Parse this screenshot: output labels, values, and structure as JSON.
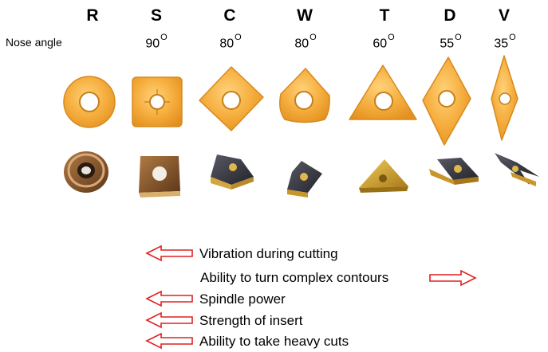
{
  "header": {
    "nose_angle_label": "Nose angle",
    "angle_superscript": "O"
  },
  "inserts": [
    {
      "code": "R",
      "nose_angle": ""
    },
    {
      "code": "S",
      "nose_angle": "90"
    },
    {
      "code": "C",
      "nose_angle": "80"
    },
    {
      "code": "W",
      "nose_angle": "80"
    },
    {
      "code": "T",
      "nose_angle": "60"
    },
    {
      "code": "D",
      "nose_angle": "55"
    },
    {
      "code": "V",
      "nose_angle": "35"
    }
  ],
  "legend": [
    {
      "text": "Vibration during cutting",
      "arrow": "left"
    },
    {
      "text": "Ability to turn complex contours",
      "arrow": "right"
    },
    {
      "text": "Spindle power",
      "arrow": "left"
    },
    {
      "text": "Strength of insert",
      "arrow": "left"
    },
    {
      "text": "Ability to take heavy cuts",
      "arrow": "left"
    }
  ],
  "colors": {
    "shape_fill": "#f3ab3a",
    "shape_stroke": "#d88a1e",
    "arrow": "#e02020",
    "dark_insert": "#3a3a44",
    "gold_insert": "#c9962a",
    "bronze_insert": "#8a5a2a"
  }
}
